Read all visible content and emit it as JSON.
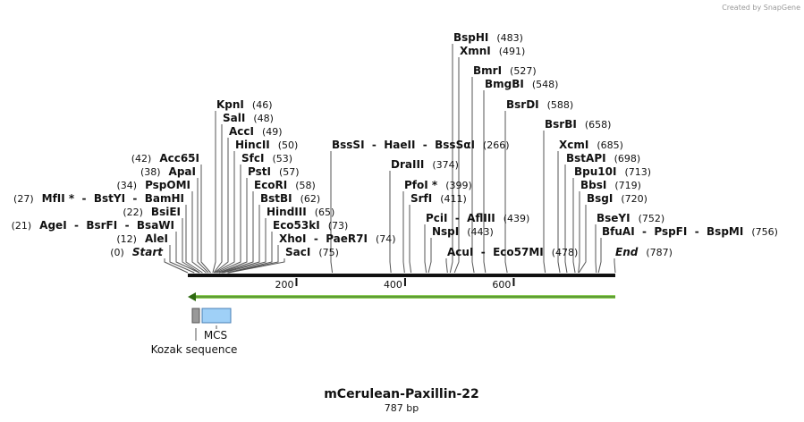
{
  "credit": "Created by SnapGene",
  "title": "mCerulean-Paxillin-22",
  "map": {
    "length": {
      "value": 787,
      "label": "787 bp"
    },
    "ruler_ticks": [
      200,
      400,
      600
    ]
  },
  "features": [
    {
      "name": "Kozak sequence"
    },
    {
      "name": "MCS"
    }
  ],
  "enzymes": [
    {
      "name": "BspHI",
      "site": {
        "value": 483,
        "label": "(483)"
      }
    },
    {
      "name": "XmnI",
      "site": {
        "value": 491,
        "label": "(491)"
      }
    },
    {
      "name": "BmrI",
      "site": {
        "value": 527,
        "label": "(527)"
      }
    },
    {
      "name": "BmgBI",
      "site": {
        "value": 548,
        "label": "(548)"
      }
    },
    {
      "name": "BsrDI",
      "site": {
        "value": 588,
        "label": "(588)"
      }
    },
    {
      "name": "BsrBI",
      "site": {
        "value": 658,
        "label": "(658)"
      }
    },
    {
      "name": "BssSI  -  HaeII  -  BssSαI",
      "site": {
        "value": 266,
        "label": "(266)"
      }
    },
    {
      "name": "XcmI",
      "site": {
        "value": 685,
        "label": "(685)"
      }
    },
    {
      "name": "DraIII",
      "site": {
        "value": 374,
        "label": "(374)"
      }
    },
    {
      "name": "BstAPI",
      "site": {
        "value": 698,
        "label": "(698)"
      }
    },
    {
      "name": "Bpu10I",
      "site": {
        "value": 713,
        "label": "(713)"
      }
    },
    {
      "name": "PfoI *",
      "site": {
        "value": 399,
        "label": "(399)"
      }
    },
    {
      "name": "BbsI",
      "site": {
        "value": 719,
        "label": "(719)"
      }
    },
    {
      "name": "SrfI",
      "site": {
        "value": 411,
        "label": "(411)"
      }
    },
    {
      "name": "BsgI",
      "site": {
        "value": 720,
        "label": "(720)"
      }
    },
    {
      "name": "PciI  -  AflIII",
      "site": {
        "value": 439,
        "label": "(439)"
      }
    },
    {
      "name": "BseYI",
      "site": {
        "value": 752,
        "label": "(752)"
      }
    },
    {
      "name": "NspI",
      "site": {
        "value": 443,
        "label": "(443)"
      }
    },
    {
      "name": "BfuAI  -  PspFI  -  BspMI",
      "site": {
        "value": 756,
        "label": "(756)"
      }
    },
    {
      "name": "AcuI  -  Eco57MI",
      "site": {
        "value": 478,
        "label": "(478)"
      }
    },
    {
      "name": "End",
      "site": {
        "value": 787,
        "label": "(787)"
      }
    },
    {
      "name": "KpnI",
      "site": {
        "value": 46,
        "label": "(46)"
      }
    },
    {
      "name": "SalI",
      "site": {
        "value": 48,
        "label": "(48)"
      }
    },
    {
      "name": "AccI",
      "site": {
        "value": 49,
        "label": "(49)"
      }
    },
    {
      "name": "HincII",
      "site": {
        "value": 50,
        "label": "(50)"
      }
    },
    {
      "name": "SfcI",
      "site": {
        "value": 53,
        "label": "(53)"
      }
    },
    {
      "name": "PstI",
      "site": {
        "value": 57,
        "label": "(57)"
      }
    },
    {
      "name": "EcoRI",
      "site": {
        "value": 58,
        "label": "(58)"
      }
    },
    {
      "name": "BstBI",
      "site": {
        "value": 62,
        "label": "(62)"
      }
    },
    {
      "name": "HindIII",
      "site": {
        "value": 65,
        "label": "(65)"
      }
    },
    {
      "name": "Eco53kI",
      "site": {
        "value": 73,
        "label": "(73)"
      }
    },
    {
      "name": "XhoI  -  PaeR7I",
      "site": {
        "value": 74,
        "label": "(74)"
      }
    },
    {
      "name": "SacI",
      "site": {
        "value": 75,
        "label": "(75)"
      }
    },
    {
      "name": "Acc65I",
      "site": {
        "value": 42,
        "label": "(42)"
      }
    },
    {
      "name": "ApaI",
      "site": {
        "value": 38,
        "label": "(38)"
      }
    },
    {
      "name": "PspOMI",
      "site": {
        "value": 34,
        "label": "(34)"
      }
    },
    {
      "name": "MfII *  -  BstYI  -  BamHI",
      "site": {
        "value": 27,
        "label": "(27)"
      }
    },
    {
      "name": "BsiEI",
      "site": {
        "value": 22,
        "label": "(22)"
      }
    },
    {
      "name": "AgeI  -  BsrFI  -  BsaWI",
      "site": {
        "value": 21,
        "label": "(21)"
      }
    },
    {
      "name": "AleI",
      "site": {
        "value": 12,
        "label": "(12)"
      }
    },
    {
      "name": "Start",
      "site": {
        "value": 0,
        "label": "(0)"
      }
    }
  ]
}
